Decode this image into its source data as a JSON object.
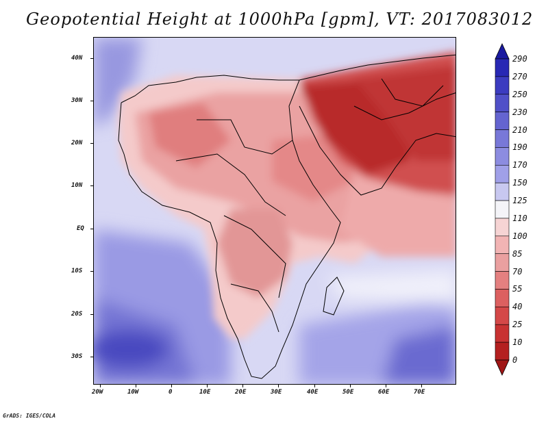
{
  "title": "Geopotential Height at 1000hPa [gpm], VT: 2017083012",
  "credit": "GrADS: IGES/COLA",
  "lat_labels": [
    "40N",
    "30N",
    "20N",
    "10N",
    "EQ",
    "10S",
    "20S",
    "30S"
  ],
  "lon_labels": [
    "20W",
    "10W",
    "0",
    "10E",
    "20E",
    "30E",
    "40E",
    "50E",
    "60E",
    "70E"
  ],
  "colorbar": {
    "levels": [
      "290",
      "270",
      "250",
      "230",
      "210",
      "190",
      "170",
      "150",
      "125",
      "110",
      "100",
      "85",
      "70",
      "55",
      "40",
      "25",
      "10",
      "0"
    ],
    "colors": [
      "#1a1aa0",
      "#2828b4",
      "#3c3cc0",
      "#5050c8",
      "#6464d0",
      "#7878d8",
      "#8c8ce0",
      "#a0a0e8",
      "#c8c8f0",
      "#f4f4f8",
      "#f6d4d4",
      "#f2b4b4",
      "#eaa0a0",
      "#e48080",
      "#dc6060",
      "#d44848",
      "#c83232",
      "#b42020",
      "#a01616"
    ]
  }
}
